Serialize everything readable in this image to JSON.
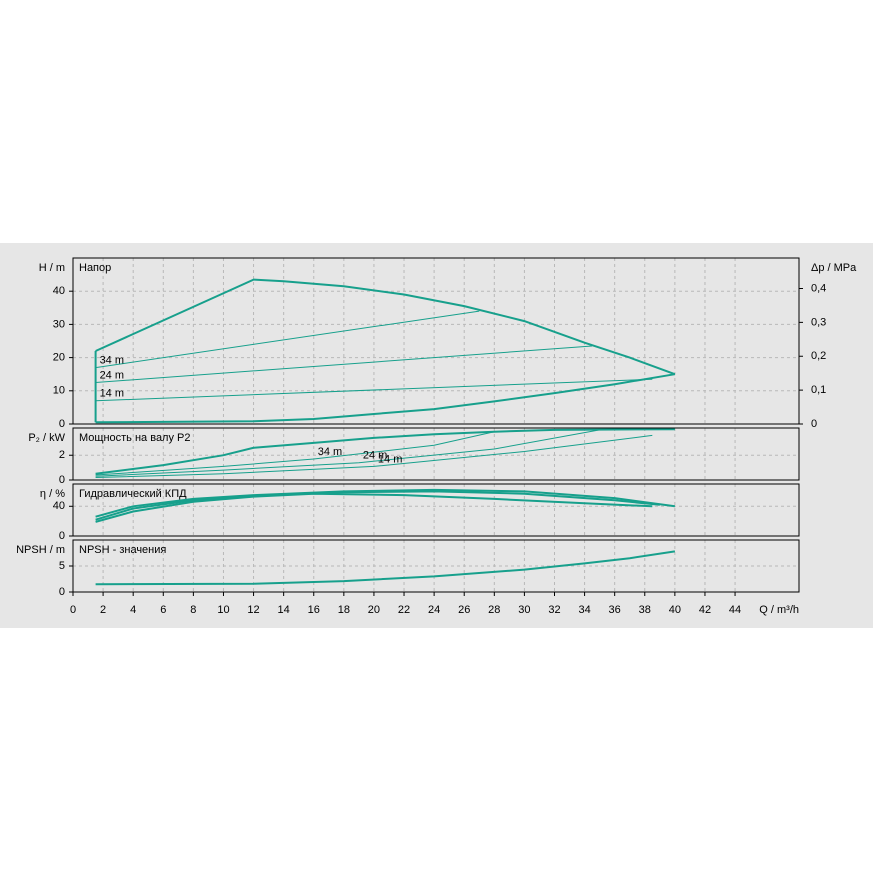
{
  "chart_data": [
    {
      "type": "line",
      "title": "Напор",
      "ylabel": "H / m",
      "y2label": "Δp / MPa",
      "ylim": [
        0,
        50
      ],
      "yticks": [
        0,
        10,
        20,
        30,
        40
      ],
      "y2lim": [
        0,
        0.49
      ],
      "y2ticks": [
        0,
        {
          "value": 0.1,
          "label": "0,1"
        },
        {
          "value": 0.2,
          "label": "0,2"
        },
        {
          "value": 0.3,
          "label": "0,3"
        },
        {
          "value": 0.4,
          "label": "0,4"
        }
      ],
      "grid": true,
      "series": [
        {
          "color": "#17a08c",
          "x": [
            1.5,
            12,
            14,
            18,
            22,
            26,
            30,
            34,
            37,
            40
          ],
          "values": [
            22,
            43.5,
            43,
            41.5,
            39,
            35.5,
            31,
            24.5,
            20,
            15
          ]
        },
        {
          "color": "#17a08c",
          "x": [
            1.5,
            1.5
          ],
          "values": [
            22,
            0.5
          ]
        },
        {
          "color": "#17a08c",
          "x": [
            1.5,
            12,
            16,
            20,
            24,
            28,
            32,
            36,
            40
          ],
          "values": [
            0.5,
            0.8,
            1.5,
            3,
            4.5,
            6.8,
            9.3,
            12,
            15
          ]
        },
        {
          "name": "34 m",
          "color": "#17a08c",
          "x": [
            1.5,
            27
          ],
          "values": [
            17,
            34
          ]
        },
        {
          "name": "24 m",
          "color": "#17a08c",
          "x": [
            1.5,
            34.5
          ],
          "values": [
            12.5,
            23.5
          ]
        },
        {
          "name": "14 m",
          "color": "#17a08c",
          "x": [
            1.5,
            38.5
          ],
          "values": [
            7,
            13.5
          ]
        }
      ]
    },
    {
      "type": "line",
      "title": "Мощность на валу P2",
      "ylabel": "P₂ / kW",
      "ylim": [
        0,
        4.2
      ],
      "yticks": [
        0,
        2
      ],
      "grid": true,
      "series": [
        {
          "color": "#17a08c",
          "x": [
            1.5,
            6,
            10,
            12,
            16,
            20,
            24,
            28,
            32,
            40
          ],
          "values": [
            0.5,
            1.2,
            2,
            2.6,
            3,
            3.4,
            3.7,
            3.9,
            4.05,
            4.1
          ]
        },
        {
          "name": "34 m",
          "color": "#17a08c",
          "x": [
            1.5,
            10,
            16,
            24,
            28
          ],
          "values": [
            0.4,
            1.1,
            1.7,
            2.8,
            3.9
          ]
        },
        {
          "name": "24 m",
          "color": "#17a08c",
          "x": [
            1.5,
            10,
            19,
            28,
            35
          ],
          "values": [
            0.3,
            0.8,
            1.4,
            2.5,
            4.05
          ]
        },
        {
          "name": "14 m",
          "color": "#17a08c",
          "x": [
            1.5,
            10,
            20,
            30,
            38.5
          ],
          "values": [
            0.2,
            0.5,
            1.1,
            2.3,
            3.6
          ]
        }
      ]
    },
    {
      "type": "line",
      "title": "Гидравлический КПД",
      "ylabel": "η / %",
      "ylim": [
        0,
        70
      ],
      "yticks": [
        0,
        40
      ],
      "grid": true,
      "series": [
        {
          "color": "#17a08c",
          "x": [
            1.5,
            4,
            8,
            12,
            18,
            24,
            30,
            36,
            40
          ],
          "values": [
            26,
            40,
            50,
            55,
            60,
            62,
            60,
            51,
            40
          ]
        },
        {
          "color": "#17a08c",
          "x": [
            1.5,
            4,
            8,
            12,
            18,
            24,
            30,
            36,
            39
          ],
          "values": [
            22,
            37,
            48,
            54,
            59,
            60,
            57,
            48,
            42
          ]
        },
        {
          "color": "#17a08c",
          "x": [
            1.5,
            4,
            8,
            12,
            16,
            22,
            28,
            34,
            38.5
          ],
          "values": [
            19,
            33,
            46,
            53,
            57,
            55,
            50,
            44,
            40
          ]
        }
      ]
    },
    {
      "type": "line",
      "title": "NPSH - значения",
      "ylabel": "NPSH / m",
      "xlabel": "Q / m³/h",
      "ylim": [
        0,
        10
      ],
      "yticks": [
        0,
        5
      ],
      "grid": true,
      "xlim": [
        0,
        48.25
      ],
      "xticks": [
        0,
        2,
        4,
        6,
        8,
        10,
        12,
        14,
        16,
        18,
        20,
        22,
        24,
        26,
        28,
        30,
        32,
        34,
        36,
        38,
        40,
        42,
        44
      ],
      "series": [
        {
          "color": "#17a08c",
          "x": [
            1.5,
            12,
            18,
            24,
            30,
            34,
            37,
            40
          ],
          "values": [
            1.5,
            1.6,
            2.1,
            3,
            4.3,
            5.5,
            6.5,
            7.8
          ]
        }
      ]
    }
  ]
}
